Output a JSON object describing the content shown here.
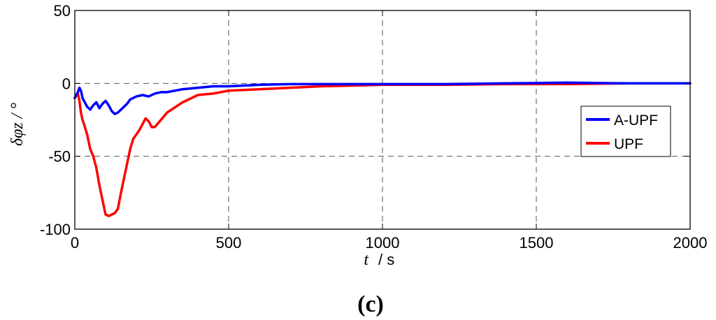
{
  "chart_data": {
    "type": "line",
    "xlabel_var": "t",
    "xlabel_unit": "/ s",
    "ylabel": "δφz / °",
    "panel_label": "(c)",
    "xlim": [
      0,
      2000
    ],
    "ylim": [
      -100,
      50
    ],
    "xticks": [
      0,
      500,
      1000,
      1500,
      2000
    ],
    "yticks": [
      -100,
      -50,
      0,
      50
    ],
    "grid": "dashed at x = 500, 1000, 1500 and y = 0, -50",
    "legend_position": "right",
    "series": [
      {
        "name": "A-UPF",
        "color": "#0000ff",
        "x": [
          0,
          5,
          10,
          15,
          20,
          25,
          30,
          40,
          50,
          60,
          70,
          80,
          90,
          100,
          110,
          120,
          130,
          140,
          150,
          160,
          170,
          180,
          200,
          220,
          240,
          260,
          280,
          300,
          350,
          400,
          450,
          500,
          600,
          700,
          800,
          900,
          1000,
          1200,
          1400,
          1600,
          1800,
          2000
        ],
        "y": [
          -10,
          -8,
          -6,
          -3,
          -5,
          -10,
          -12,
          -16,
          -18,
          -15,
          -13,
          -17,
          -14,
          -12,
          -15,
          -19,
          -21,
          -20,
          -18,
          -16,
          -14,
          -11,
          -9,
          -8,
          -9,
          -7,
          -6,
          -6,
          -4,
          -3,
          -2,
          -2,
          -1,
          -0.5,
          -0.5,
          -0.5,
          -0.5,
          -0.5,
          0,
          0.5,
          0,
          0
        ]
      },
      {
        "name": "UPF",
        "color": "#ff0000",
        "x": [
          0,
          5,
          10,
          15,
          20,
          25,
          30,
          40,
          50,
          60,
          70,
          80,
          90,
          100,
          110,
          120,
          130,
          140,
          150,
          160,
          170,
          180,
          190,
          200,
          210,
          220,
          230,
          240,
          250,
          260,
          280,
          300,
          350,
          400,
          450,
          500,
          600,
          700,
          800,
          900,
          1000,
          1200,
          1400,
          1600,
          1800,
          2000
        ],
        "y": [
          -10,
          -8,
          -7,
          -12,
          -20,
          -25,
          -28,
          -35,
          -45,
          -50,
          -58,
          -70,
          -80,
          -90,
          -91,
          -90,
          -89,
          -86,
          -75,
          -65,
          -55,
          -45,
          -38,
          -35,
          -32,
          -28,
          -24,
          -26,
          -30,
          -30,
          -25,
          -20,
          -13,
          -8,
          -7,
          -5,
          -4,
          -3,
          -2,
          -1.5,
          -1,
          -1,
          -0.5,
          -0.5,
          0,
          0
        ]
      }
    ]
  }
}
